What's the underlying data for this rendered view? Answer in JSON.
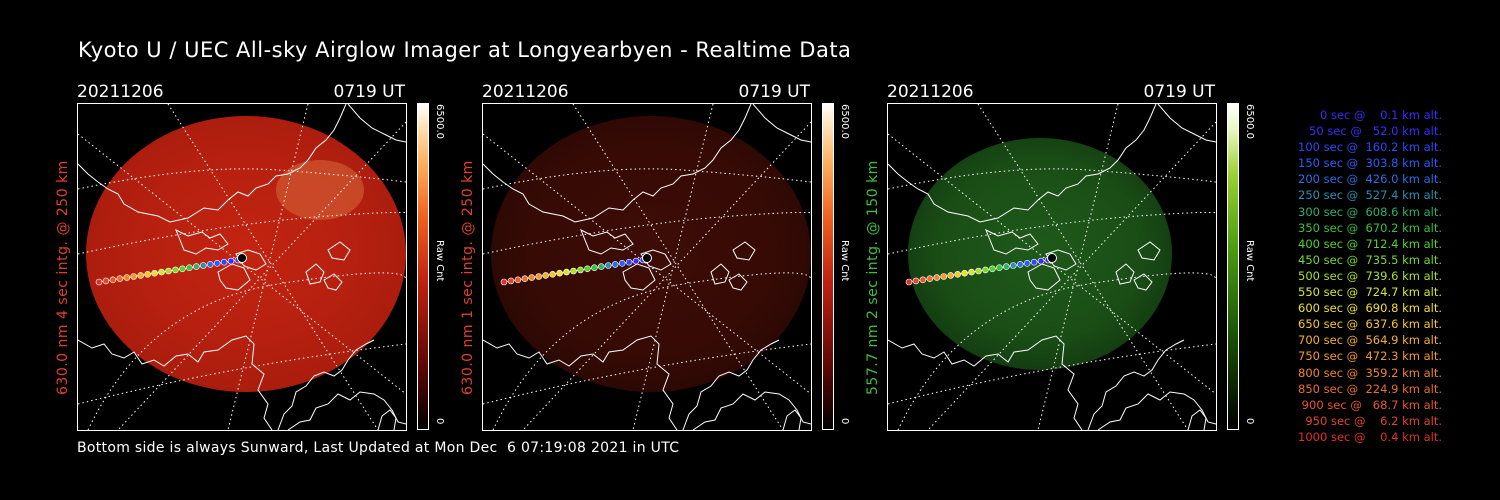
{
  "title": "Kyoto U / UEC All-sky Airglow Imager at Longyearbyen - Realtime Data",
  "footer": "Bottom side is always Sunward, Last Updated at Mon Dec  6 07:19:08 2021 in UTC",
  "panels": [
    {
      "date": "20211206",
      "time": "0719 UT",
      "label": "630.0 nm 4 sec intg. @ 250 km",
      "label_color": "#e0402a",
      "cbar_max": "6500.0",
      "cbar_min": "0",
      "cbar_unit": "Raw Cnt",
      "colormap": "red",
      "brightness": "high"
    },
    {
      "date": "20211206",
      "time": "0719 UT",
      "label": "630.0 nm 1 sec intg. @ 250 km",
      "label_color": "#e0402a",
      "cbar_max": "6500.0",
      "cbar_min": "0",
      "cbar_unit": "Raw Cnt",
      "colormap": "red",
      "brightness": "low"
    },
    {
      "date": "20211206",
      "time": "0719 UT",
      "label": "557.7 nm 2 sec intg. @ 150 km",
      "label_color": "#3fbf3f",
      "cbar_max": "6500.0",
      "cbar_min": "0",
      "cbar_unit": "Raw Cnt",
      "colormap": "green",
      "brightness": "low"
    }
  ],
  "legend": [
    {
      "text": "   0 sec @    0.1 km alt.",
      "color": "#3b2bff"
    },
    {
      "text": "  50 sec @   52.0 km alt.",
      "color": "#3b2bff"
    },
    {
      "text": " 100 sec @  160.2 km alt.",
      "color": "#2c48ff"
    },
    {
      "text": " 150 sec @  303.8 km alt.",
      "color": "#2a5cff"
    },
    {
      "text": " 200 sec @  426.0 km alt.",
      "color": "#2a6ee8"
    },
    {
      "text": " 250 sec @  527.4 km alt.",
      "color": "#2a8fb0"
    },
    {
      "text": " 300 sec @  608.6 km alt.",
      "color": "#2eb06a"
    },
    {
      "text": " 350 sec @  670.2 km alt.",
      "color": "#38c23a"
    },
    {
      "text": " 400 sec @  712.4 km alt.",
      "color": "#56d02a"
    },
    {
      "text": " 450 sec @  735.5 km alt.",
      "color": "#7ad82a"
    },
    {
      "text": " 500 sec @  739.6 km alt.",
      "color": "#a8e02a"
    },
    {
      "text": " 550 sec @  724.7 km alt.",
      "color": "#d6e82a"
    },
    {
      "text": " 600 sec @  690.8 km alt.",
      "color": "#f0e02a"
    },
    {
      "text": " 650 sec @  637.6 km alt.",
      "color": "#f5c82a"
    },
    {
      "text": " 700 sec @  564.9 km alt.",
      "color": "#f5b02a"
    },
    {
      "text": " 750 sec @  472.3 km alt.",
      "color": "#f59a2a"
    },
    {
      "text": " 800 sec @  359.2 km alt.",
      "color": "#f0842a"
    },
    {
      "text": " 850 sec @  224.9 km alt.",
      "color": "#ec6e2a"
    },
    {
      "text": " 900 sec @   68.7 km alt.",
      "color": "#e8582a"
    },
    {
      "text": " 950 sec @    6.2 km alt.",
      "color": "#e4442a"
    },
    {
      "text": "1000 sec @    0.4 km alt.",
      "color": "#e0302a"
    }
  ]
}
